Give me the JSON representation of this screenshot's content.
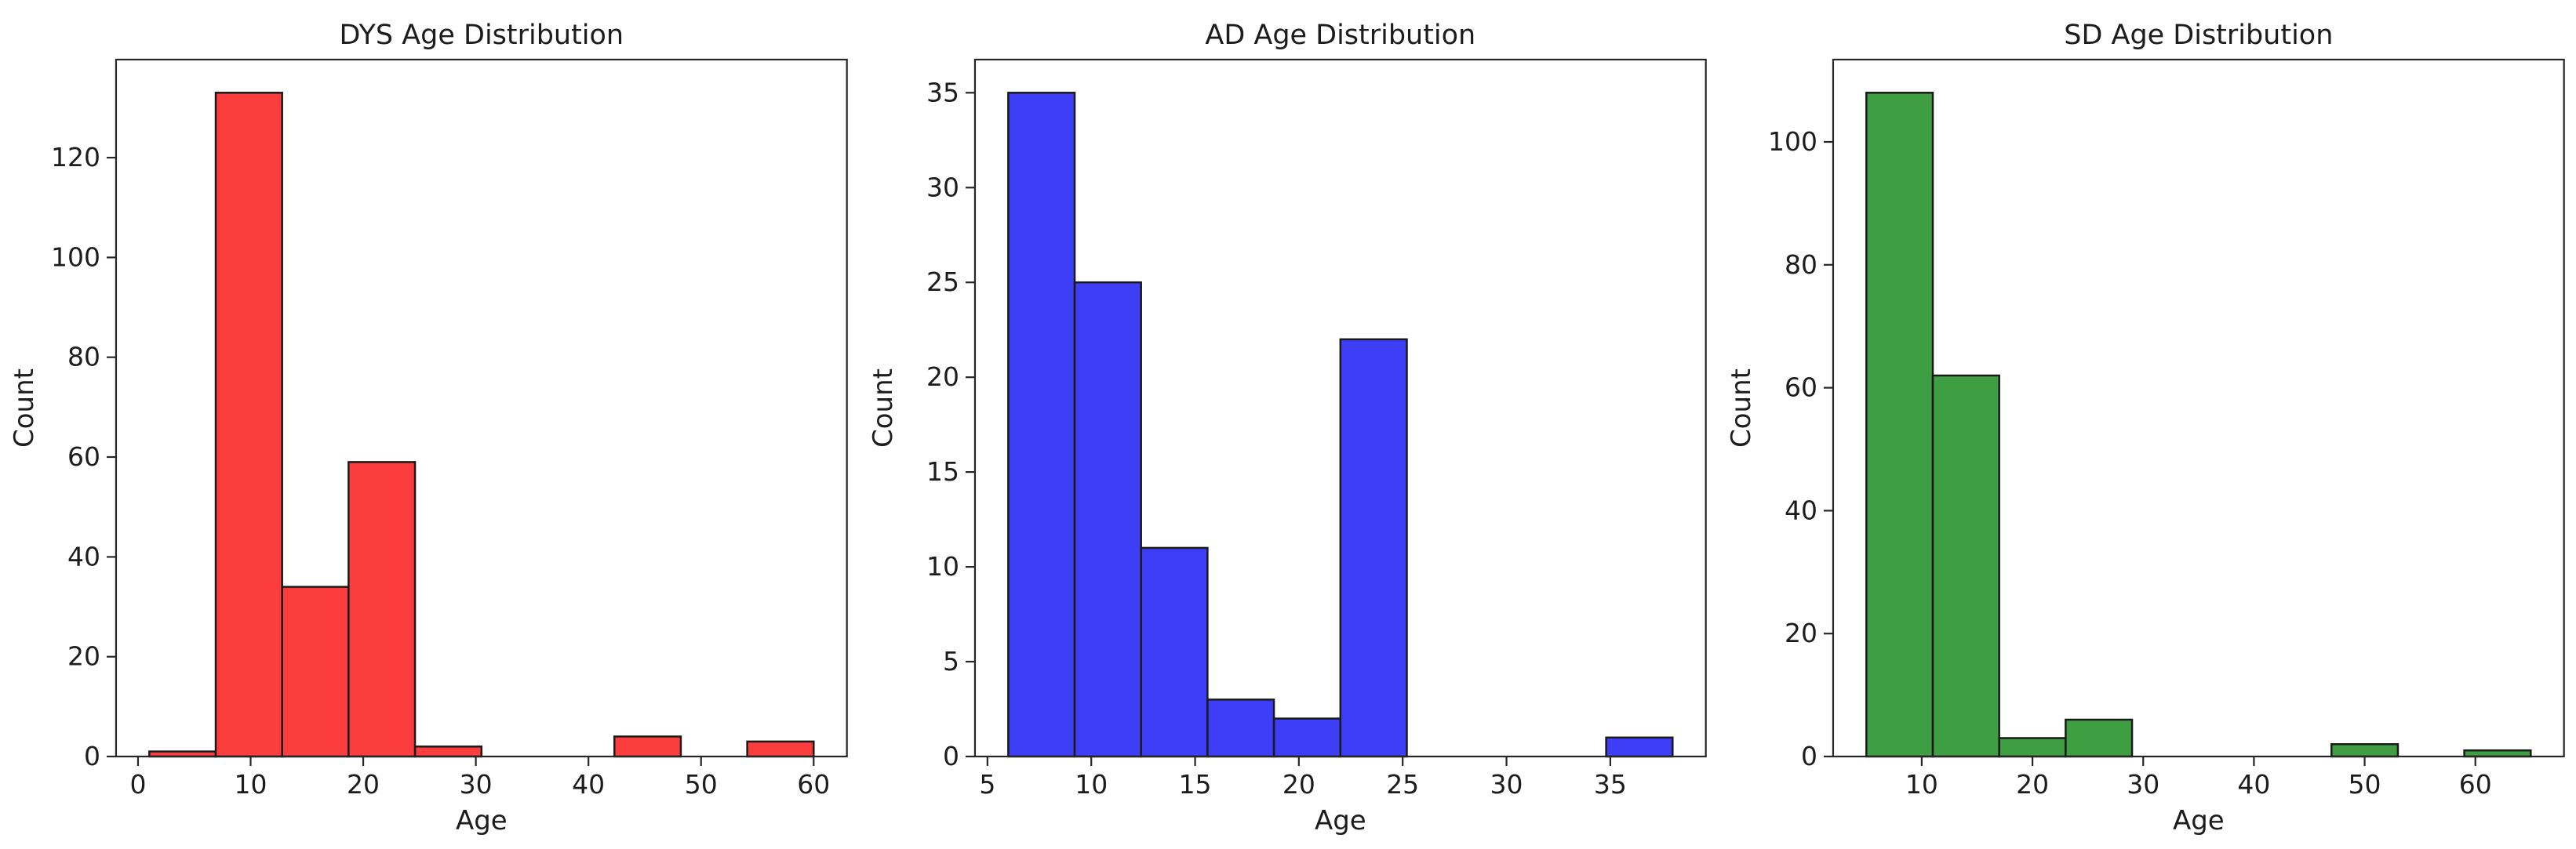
{
  "figure": {
    "background": "#ffffff",
    "axis_color": "#262626",
    "text_color": "#1c1c1c"
  },
  "chart_data": [
    {
      "type": "bar",
      "subtype": "histogram",
      "title": "DYS Age Distribution",
      "xlabel": "Age",
      "ylabel": "Count",
      "bar_color": "#fb3d3d",
      "bar_edge_color": "#1a1a1a",
      "bin_edges": [
        1,
        6.9,
        12.8,
        18.7,
        24.6,
        30.5,
        36.4,
        42.3,
        48.2,
        54.1,
        60
      ],
      "counts": [
        1,
        133,
        34,
        59,
        2,
        0,
        0,
        4,
        0,
        3
      ],
      "xticks": [
        0,
        10,
        20,
        30,
        40,
        50,
        60
      ],
      "yticks": [
        0,
        20,
        40,
        60,
        80,
        100,
        120
      ],
      "xlim": [
        -1.95,
        62.95
      ],
      "ylim": [
        0,
        139.65
      ],
      "grid": false,
      "legend": null
    },
    {
      "type": "bar",
      "subtype": "histogram",
      "title": "AD Age Distribution",
      "xlabel": "Age",
      "ylabel": "Count",
      "bar_color": "#3e3ef7",
      "bar_edge_color": "#1a1a1a",
      "bin_edges": [
        6,
        9.2,
        12.4,
        15.6,
        18.8,
        22,
        25.2,
        28.4,
        31.6,
        34.8,
        38
      ],
      "counts": [
        35,
        25,
        11,
        3,
        2,
        22,
        0,
        0,
        0,
        1
      ],
      "xticks": [
        5,
        10,
        15,
        20,
        25,
        30,
        35
      ],
      "yticks": [
        0,
        5,
        10,
        15,
        20,
        25,
        30,
        35
      ],
      "xlim": [
        4.4,
        39.6
      ],
      "ylim": [
        0,
        36.75
      ],
      "grid": false,
      "legend": null
    },
    {
      "type": "bar",
      "subtype": "histogram",
      "title": "SD Age Distribution",
      "xlabel": "Age",
      "ylabel": "Count",
      "bar_color": "#3f9e41",
      "bar_edge_color": "#1a1a1a",
      "bin_edges": [
        5,
        11,
        17,
        23,
        29,
        35,
        41,
        47,
        53,
        59,
        65
      ],
      "counts": [
        108,
        62,
        3,
        6,
        0,
        0,
        0,
        2,
        0,
        1
      ],
      "xticks": [
        10,
        20,
        30,
        40,
        50,
        60
      ],
      "yticks": [
        0,
        20,
        40,
        60,
        80,
        100
      ],
      "xlim": [
        2,
        68
      ],
      "ylim": [
        0,
        113.4
      ],
      "grid": false,
      "legend": null
    }
  ]
}
